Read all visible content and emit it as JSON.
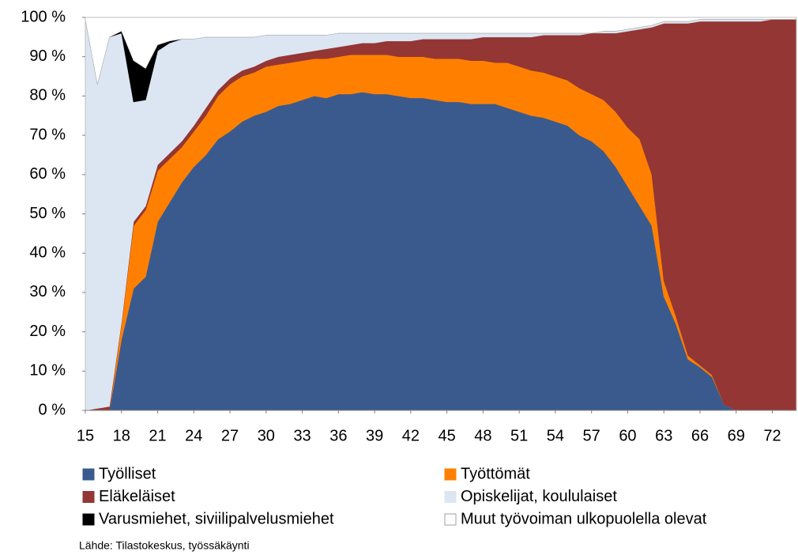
{
  "chart_data": {
    "type": "stacked_area",
    "x": [
      15,
      16,
      17,
      18,
      19,
      20,
      21,
      22,
      23,
      24,
      25,
      26,
      27,
      28,
      29,
      30,
      31,
      32,
      33,
      34,
      35,
      36,
      37,
      38,
      39,
      40,
      41,
      42,
      43,
      44,
      45,
      46,
      47,
      48,
      49,
      50,
      51,
      52,
      53,
      54,
      55,
      56,
      57,
      58,
      59,
      60,
      61,
      62,
      63,
      64,
      65,
      66,
      67,
      68,
      69,
      70,
      71,
      72,
      73,
      74
    ],
    "xlim": [
      15,
      74
    ],
    "xticks": [
      15,
      18,
      21,
      24,
      27,
      30,
      33,
      36,
      39,
      42,
      45,
      48,
      51,
      54,
      57,
      60,
      63,
      66,
      69,
      72
    ],
    "ylim": [
      0,
      100
    ],
    "yticks": [
      {
        "value": 0,
        "label": "0 %"
      },
      {
        "value": 10,
        "label": "10 %"
      },
      {
        "value": 20,
        "label": "20 %"
      },
      {
        "value": 30,
        "label": "30 %"
      },
      {
        "value": 40,
        "label": "40 %"
      },
      {
        "value": 50,
        "label": "50 %"
      },
      {
        "value": 60,
        "label": "60 %"
      },
      {
        "value": 70,
        "label": "70 %"
      },
      {
        "value": 80,
        "label": "80 %"
      },
      {
        "value": 90,
        "label": "90 %"
      },
      {
        "value": 100,
        "label": "100 %"
      }
    ],
    "series": [
      {
        "name": "Työlliset",
        "color": "#3a5a8e",
        "values": [
          0,
          0,
          0,
          18,
          31,
          34,
          48,
          53,
          58,
          62,
          65,
          69,
          71,
          73.5,
          75,
          76,
          77.5,
          78,
          79,
          80,
          79.5,
          80.5,
          80.5,
          81,
          80.5,
          80.5,
          80,
          79.5,
          79.5,
          79,
          78.5,
          78.5,
          78,
          78,
          78,
          77,
          76,
          75,
          74.5,
          73.5,
          72.5,
          70,
          68.5,
          66,
          62,
          57,
          52,
          47,
          29,
          22,
          13,
          11,
          8.5,
          1.5,
          0,
          0,
          0,
          0,
          0,
          0
        ]
      },
      {
        "name": "Työttömät",
        "color": "#ff8000",
        "values": [
          0,
          0,
          0,
          4,
          16,
          17,
          13,
          11,
          9,
          9,
          10,
          11,
          12,
          11.5,
          11,
          11.5,
          10.5,
          10.5,
          10,
          9.5,
          10,
          9.5,
          10,
          9.5,
          10,
          10,
          10,
          10.5,
          10.5,
          10.5,
          11,
          11,
          11,
          11,
          10.5,
          11.5,
          11.5,
          11.5,
          11.5,
          11.5,
          11.5,
          12,
          12,
          13,
          14,
          15,
          17,
          13,
          4,
          2,
          1,
          0.5,
          0.5,
          0,
          0,
          0,
          0,
          0,
          0,
          0
        ]
      },
      {
        "name": "Eläkeläiset",
        "color": "#943634",
        "values": [
          0,
          0.5,
          1,
          0.5,
          1,
          1,
          1.5,
          1.5,
          1.5,
          1.5,
          2,
          1.5,
          1.5,
          1.5,
          1.5,
          1.5,
          2,
          2,
          2,
          2,
          2.5,
          2.5,
          2.5,
          3,
          3,
          3.5,
          4,
          4,
          4.5,
          5,
          5,
          5,
          5.5,
          6,
          6.5,
          6.5,
          7.5,
          8.5,
          9.5,
          10.5,
          11.5,
          13.5,
          15.5,
          17,
          20,
          24.5,
          28,
          37.5,
          65.5,
          74.5,
          84.5,
          87.5,
          90,
          97.5,
          99,
          99,
          99,
          99.5,
          99.5,
          99.5
        ]
      },
      {
        "name": "Opiskelijat, koululaiset",
        "color": "#dce6f2",
        "values": [
          99.5,
          82.5,
          94,
          73.5,
          30.5,
          27,
          29,
          28,
          26,
          22,
          18,
          13.5,
          10.5,
          8.5,
          7.5,
          6.5,
          5.5,
          5,
          4.5,
          4,
          3.5,
          3.5,
          3,
          2.5,
          2.5,
          2,
          2,
          2,
          1.5,
          1.5,
          1.5,
          1.5,
          1.5,
          1,
          1,
          1,
          1,
          1,
          0.5,
          0.5,
          0.5,
          0.5,
          0,
          0.5,
          0.5,
          0.5,
          0.5,
          0.5,
          0.5,
          0.5,
          0.5,
          0.5,
          0.5,
          0.5,
          0.5,
          0.5,
          0.5,
          0,
          0,
          0
        ]
      },
      {
        "name": "Varusmiehet, siviilipalvelusmiehet",
        "color": "#000000",
        "values": [
          0,
          0,
          0,
          0.5,
          10.5,
          8,
          1.5,
          0.5,
          0,
          0,
          0,
          0,
          0,
          0,
          0,
          0,
          0,
          0,
          0,
          0,
          0,
          0,
          0,
          0,
          0,
          0,
          0,
          0,
          0,
          0,
          0,
          0,
          0,
          0,
          0,
          0,
          0,
          0,
          0,
          0,
          0,
          0,
          0,
          0,
          0,
          0,
          0,
          0,
          0,
          0,
          0,
          0,
          0,
          0,
          0,
          0,
          0,
          0,
          0,
          0
        ]
      },
      {
        "name": "Muut työvoiman ulkopuolella olevat",
        "color": "#ffffff",
        "values": [
          0.5,
          17,
          5,
          3.5,
          11,
          13,
          7,
          6,
          5.5,
          5.5,
          5,
          5,
          5,
          5,
          5,
          4.5,
          4.5,
          4.5,
          4.5,
          4.5,
          4.5,
          4,
          4,
          4,
          4,
          4,
          4,
          4,
          4,
          4,
          4,
          4,
          4,
          4,
          4,
          4,
          4,
          4,
          4,
          4,
          4,
          4,
          4,
          3.5,
          3.5,
          3,
          2.5,
          2,
          1,
          1,
          1,
          0.5,
          0.5,
          0.5,
          0.5,
          0.5,
          0.5,
          0.5,
          0.5,
          0.5
        ]
      }
    ],
    "source": "Lähde: Tilastokeskus, työssäkäynti"
  }
}
